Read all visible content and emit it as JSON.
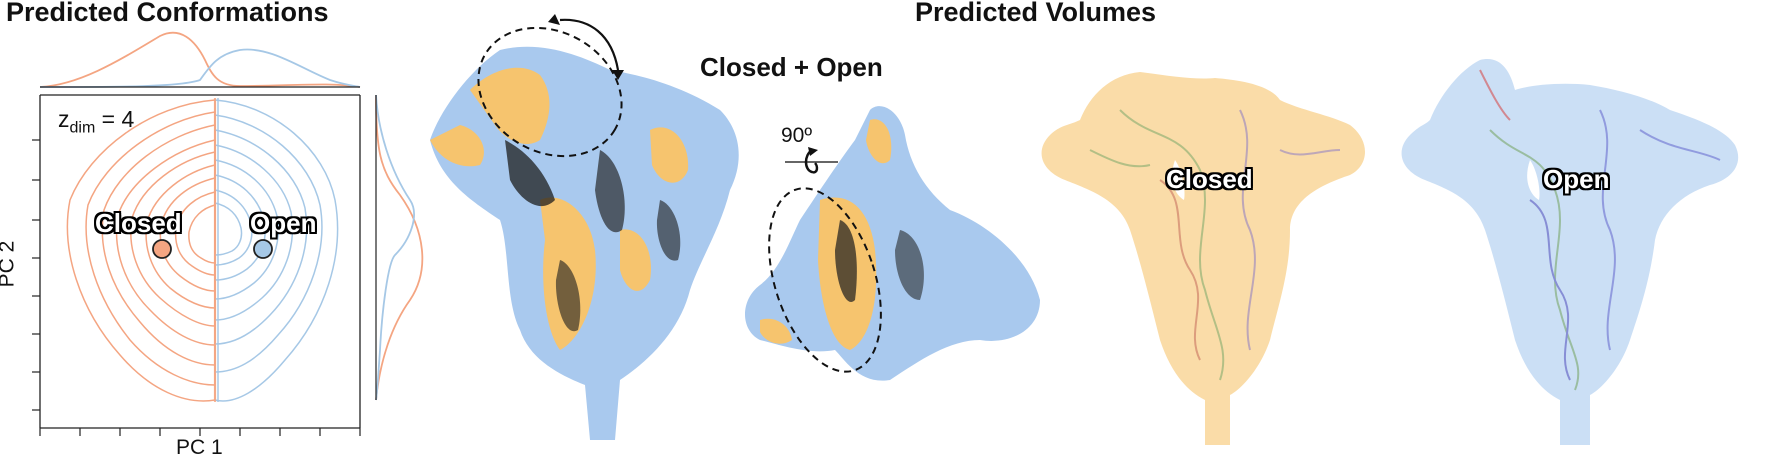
{
  "titles": {
    "conformations": "Predicted Conformations",
    "volumes": "Predicted Volumes",
    "overlay": "Closed + Open"
  },
  "plot": {
    "zdim_label": "z",
    "zdim_subscript": "dim",
    "zdim_value": "= 4",
    "xlabel": "PC 1",
    "ylabel": "PC 2",
    "closed_label": "Closed",
    "open_label": "Open"
  },
  "rotation_label": "90º",
  "volume_labels": {
    "closed": "Closed",
    "open": "Open"
  },
  "colors": {
    "closed": "#f4a582",
    "open": "#a6c8e6",
    "closed_map": "#f6c46e",
    "open_map": "#a9c9ee"
  },
  "icons": [
    "rotation-arrow-icon",
    "curved-arrow-icon"
  ]
}
